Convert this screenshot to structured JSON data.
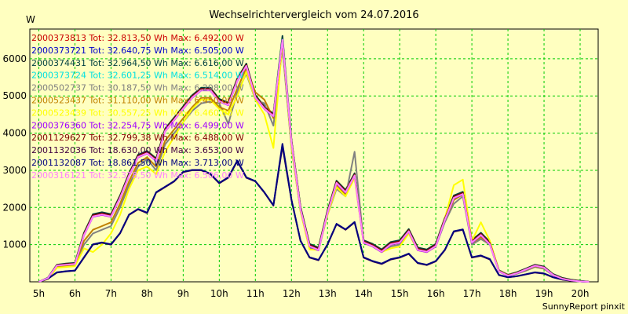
{
  "chart_data": {
    "type": "line",
    "title": "Wechselrichtervergleich vom 24.07.2016",
    "ylabel": "W",
    "xlabel": "",
    "footer": "SunnyReport pinxit",
    "ylim": [
      0,
      6800
    ],
    "xlim": [
      4.75,
      20.5
    ],
    "y_ticks": [
      1000,
      2000,
      3000,
      4000,
      5000,
      6000
    ],
    "x_ticks": [
      {
        "value": 5,
        "label": "5h"
      },
      {
        "value": 6,
        "label": "6h"
      },
      {
        "value": 7,
        "label": "7h"
      },
      {
        "value": 8,
        "label": "8h"
      },
      {
        "value": 9,
        "label": "9h"
      },
      {
        "value": 10,
        "label": "10h"
      },
      {
        "value": 11,
        "label": "11h"
      },
      {
        "value": 12,
        "label": "12h"
      },
      {
        "value": 13,
        "label": "13h"
      },
      {
        "value": 14,
        "label": "14h"
      },
      {
        "value": 15,
        "label": "15h"
      },
      {
        "value": 16,
        "label": "16h"
      },
      {
        "value": 17,
        "label": "17h"
      },
      {
        "value": 18,
        "label": "18h"
      },
      {
        "value": 19,
        "label": "19h"
      },
      {
        "value": 20,
        "label": "20h"
      }
    ],
    "grid": true,
    "x": [
      5.0,
      5.25,
      5.5,
      5.75,
      6.0,
      6.25,
      6.5,
      6.75,
      7.0,
      7.25,
      7.5,
      7.75,
      8.0,
      8.25,
      8.5,
      8.75,
      9.0,
      9.25,
      9.5,
      9.75,
      10.0,
      10.25,
      10.5,
      10.75,
      11.0,
      11.25,
      11.5,
      11.75,
      12.0,
      12.25,
      12.5,
      12.75,
      13.0,
      13.25,
      13.5,
      13.75,
      14.0,
      14.25,
      14.5,
      14.75,
      15.0,
      15.25,
      15.5,
      15.75,
      16.0,
      16.25,
      16.5,
      16.75,
      17.0,
      17.25,
      17.5,
      17.75,
      18.0,
      18.25,
      18.5,
      18.75,
      19.0,
      19.25,
      19.5,
      19.75,
      20.0,
      20.25
    ],
    "series": [
      {
        "name": "2000373813 Tot: 32.813,50 Wh Max: 6.492,00 W",
        "color": "#cc0000",
        "values": [
          0,
          100,
          450,
          480,
          500,
          1300,
          1800,
          1850,
          1800,
          2300,
          2900,
          3400,
          3500,
          3300,
          4100,
          4400,
          4700,
          5000,
          5200,
          5200,
          4900,
          4800,
          5450,
          5850,
          5000,
          4700,
          4500,
          6490,
          3800,
          2000,
          1000,
          900,
          1900,
          2700,
          2450,
          2900,
          1100,
          1000,
          850,
          1050,
          1100,
          1400,
          900,
          850,
          1000,
          1700,
          2300,
          2400,
          1100,
          1300,
          1050,
          300,
          180,
          250,
          350,
          450,
          400,
          200,
          100,
          50,
          20,
          0
        ]
      },
      {
        "name": "2000373721 Tot: 32.640,75 Wh Max: 6.505,00 W",
        "color": "#0000cc",
        "values": [
          0,
          100,
          440,
          470,
          490,
          1280,
          1780,
          1830,
          1780,
          2280,
          2880,
          3380,
          3480,
          3280,
          4080,
          4380,
          4680,
          4980,
          5180,
          5180,
          4880,
          4780,
          5430,
          5830,
          4980,
          4680,
          4480,
          6505,
          3780,
          1980,
          980,
          880,
          1880,
          2680,
          2430,
          2880,
          1080,
          980,
          830,
          1030,
          1080,
          1380,
          880,
          830,
          980,
          1680,
          2280,
          2380,
          1080,
          1280,
          1030,
          290,
          170,
          240,
          340,
          440,
          390,
          190,
          90,
          40,
          10,
          0
        ]
      },
      {
        "name": "2000374431 Tot: 32.964,50 Wh Max: 6.616,00 W",
        "color": "#004040",
        "values": [
          0,
          110,
          460,
          490,
          510,
          1320,
          1820,
          1870,
          1820,
          2320,
          2920,
          3420,
          3520,
          3320,
          4120,
          4420,
          4720,
          5020,
          5220,
          5220,
          4920,
          4820,
          5470,
          5870,
          5020,
          4720,
          4520,
          6616,
          3820,
          2020,
          1020,
          920,
          1920,
          2720,
          2470,
          2920,
          1120,
          1020,
          870,
          1070,
          1120,
          1420,
          920,
          870,
          1020,
          1720,
          2320,
          2420,
          1120,
          1320,
          1070,
          310,
          190,
          260,
          360,
          460,
          410,
          210,
          110,
          60,
          30,
          0
        ]
      },
      {
        "name": "2000373724 Tot: 32.601,25 Wh Max: 6.514,00 W",
        "color": "#00e0e0",
        "values": [
          0,
          95,
          430,
          460,
          480,
          1270,
          1770,
          1820,
          1770,
          2270,
          2870,
          3370,
          3470,
          3270,
          4070,
          4370,
          4670,
          4970,
          5170,
          5170,
          4870,
          4770,
          5420,
          5820,
          4970,
          4670,
          4470,
          6514,
          3770,
          1970,
          970,
          870,
          1870,
          2670,
          2420,
          2870,
          1070,
          970,
          820,
          1020,
          1070,
          1370,
          870,
          820,
          970,
          1670,
          2270,
          2370,
          1070,
          1270,
          1020,
          285,
          165,
          235,
          335,
          435,
          385,
          185,
          85,
          35,
          10,
          0
        ]
      },
      {
        "name": "2000502737 Tot: 30.187,50 Wh Max: 6.298,00 W",
        "color": "#808080",
        "values": [
          0,
          80,
          400,
          420,
          450,
          1000,
          1300,
          1400,
          1500,
          2000,
          2600,
          3100,
          3300,
          3000,
          3700,
          4000,
          4300,
          4600,
          4800,
          4850,
          4800,
          4250,
          5100,
          5600,
          4900,
          4800,
          4200,
          6298,
          3600,
          1900,
          900,
          850,
          1800,
          2500,
          2300,
          3500,
          1050,
          950,
          800,
          950,
          1000,
          1300,
          850,
          800,
          950,
          1600,
          2100,
          2300,
          1000,
          1150,
          1000,
          280,
          160,
          220,
          300,
          400,
          350,
          180,
          80,
          40,
          10,
          0
        ]
      },
      {
        "name": "2000523437 Tot: 31.110,00 Wh Max: 6.450,00 W",
        "color": "#c08000",
        "values": [
          0,
          90,
          420,
          440,
          470,
          1100,
          1400,
          1500,
          1600,
          2100,
          2700,
          3200,
          3350,
          3100,
          3800,
          4100,
          4400,
          4700,
          4950,
          4950,
          4700,
          4600,
          5200,
          5750,
          5100,
          4900,
          4400,
          6450,
          3700,
          1950,
          950,
          870,
          1850,
          2600,
          2350,
          2850,
          1060,
          960,
          820,
          1000,
          1050,
          1350,
          870,
          820,
          970,
          1650,
          2200,
          2350,
          1050,
          1200,
          1020,
          290,
          170,
          230,
          320,
          420,
          370,
          190,
          90,
          45,
          15,
          0
        ]
      },
      {
        "name": "2000523439 Tot: 30.557,25 Wh Max: 6.460,00 W",
        "color": "#ffff00",
        "values": [
          0,
          70,
          380,
          400,
          420,
          900,
          800,
          1000,
          1300,
          1800,
          2500,
          3000,
          3100,
          2900,
          3500,
          3900,
          4300,
          4650,
          4900,
          4900,
          4650,
          4500,
          5000,
          5650,
          4900,
          4500,
          3600,
          6460,
          3650,
          1900,
          870,
          860,
          1800,
          2550,
          2300,
          2800,
          1050,
          950,
          800,
          900,
          950,
          1300,
          850,
          800,
          950,
          1700,
          2600,
          2750,
          1100,
          1600,
          1100,
          300,
          180,
          240,
          330,
          430,
          380,
          190,
          90,
          45,
          15,
          0
        ]
      },
      {
        "name": "2000376360 Tot: 32.254,75 Wh Max: 6.499,00 W",
        "color": "#a000ff",
        "values": [
          0,
          100,
          440,
          470,
          490,
          1250,
          1750,
          1800,
          1750,
          2250,
          2850,
          3350,
          3450,
          3250,
          4050,
          4350,
          4650,
          4950,
          5150,
          5150,
          4850,
          4750,
          5400,
          5800,
          4950,
          4650,
          4450,
          6499,
          3750,
          1950,
          950,
          850,
          1850,
          2650,
          2400,
          2850,
          1050,
          950,
          800,
          1000,
          1050,
          1350,
          850,
          800,
          950,
          1650,
          2250,
          2350,
          1050,
          1250,
          1000,
          280,
          160,
          230,
          330,
          430,
          380,
          180,
          80,
          35,
          10,
          0
        ]
      },
      {
        "name": "2001129627 Tot: 32.799,38 Wh Max: 6.488,00 W",
        "color": "#800000",
        "values": [
          0,
          100,
          450,
          475,
          495,
          1290,
          1790,
          1840,
          1790,
          2290,
          2890,
          3390,
          3490,
          3290,
          4090,
          4390,
          4690,
          4990,
          5190,
          5190,
          4890,
          4790,
          5440,
          5840,
          4990,
          4690,
          4490,
          6488,
          3790,
          1990,
          990,
          890,
          1890,
          2690,
          2440,
          2890,
          1090,
          990,
          840,
          1040,
          1090,
          1390,
          890,
          840,
          990,
          1690,
          2290,
          2390,
          1090,
          1290,
          1040,
          295,
          175,
          245,
          345,
          445,
          395,
          195,
          95,
          45,
          15,
          0
        ]
      },
      {
        "name": "2001132036 Tot: 18.630,00 Wh Max: 3.653,00 W",
        "color": "#400040",
        "values": [
          0,
          80,
          250,
          280,
          300,
          650,
          1000,
          1050,
          1000,
          1300,
          1800,
          1950,
          1850,
          2400,
          2550,
          2700,
          2950,
          3000,
          3000,
          2900,
          2650,
          2800,
          3250,
          2800,
          2700,
          2400,
          2050,
          3650,
          2200,
          1100,
          650,
          580,
          1000,
          1550,
          1400,
          1600,
          650,
          550,
          480,
          600,
          650,
          750,
          500,
          450,
          550,
          850,
          1350,
          1400,
          650,
          700,
          600,
          180,
          120,
          150,
          200,
          250,
          220,
          120,
          60,
          30,
          10,
          0
        ]
      },
      {
        "name": "2001132087 Tot: 18.861,50 Wh Max: 3.713,00 W",
        "color": "#000080",
        "values": [
          0,
          85,
          255,
          285,
          305,
          660,
          1010,
          1060,
          1010,
          1310,
          1810,
          1960,
          1860,
          2410,
          2560,
          2710,
          2960,
          3010,
          3010,
          2910,
          2660,
          2810,
          3260,
          2810,
          2710,
          2410,
          2060,
          3713,
          2210,
          1110,
          660,
          590,
          1010,
          1560,
          1410,
          1610,
          660,
          560,
          490,
          610,
          660,
          760,
          510,
          460,
          560,
          860,
          1360,
          1410,
          660,
          710,
          610,
          185,
          125,
          155,
          205,
          255,
          225,
          125,
          65,
          35,
          10,
          0
        ]
      },
      {
        "name": "2000316121 Tot: 32.378,50 Wh Max: 6.506,00 W",
        "color": "#ff80ff",
        "values": [
          0,
          100,
          440,
          460,
          480,
          1260,
          1760,
          1810,
          1760,
          2260,
          2860,
          3360,
          3460,
          3260,
          4060,
          4360,
          4660,
          4960,
          5160,
          5160,
          4860,
          4760,
          5410,
          5810,
          4960,
          4660,
          4460,
          6506,
          3760,
          1960,
          960,
          860,
          1860,
          2660,
          2410,
          2860,
          1060,
          960,
          810,
          1010,
          1060,
          1360,
          860,
          810,
          960,
          1660,
          2260,
          2360,
          1060,
          1260,
          1010,
          285,
          165,
          235,
          335,
          435,
          385,
          185,
          85,
          35,
          10,
          0
        ]
      }
    ]
  }
}
